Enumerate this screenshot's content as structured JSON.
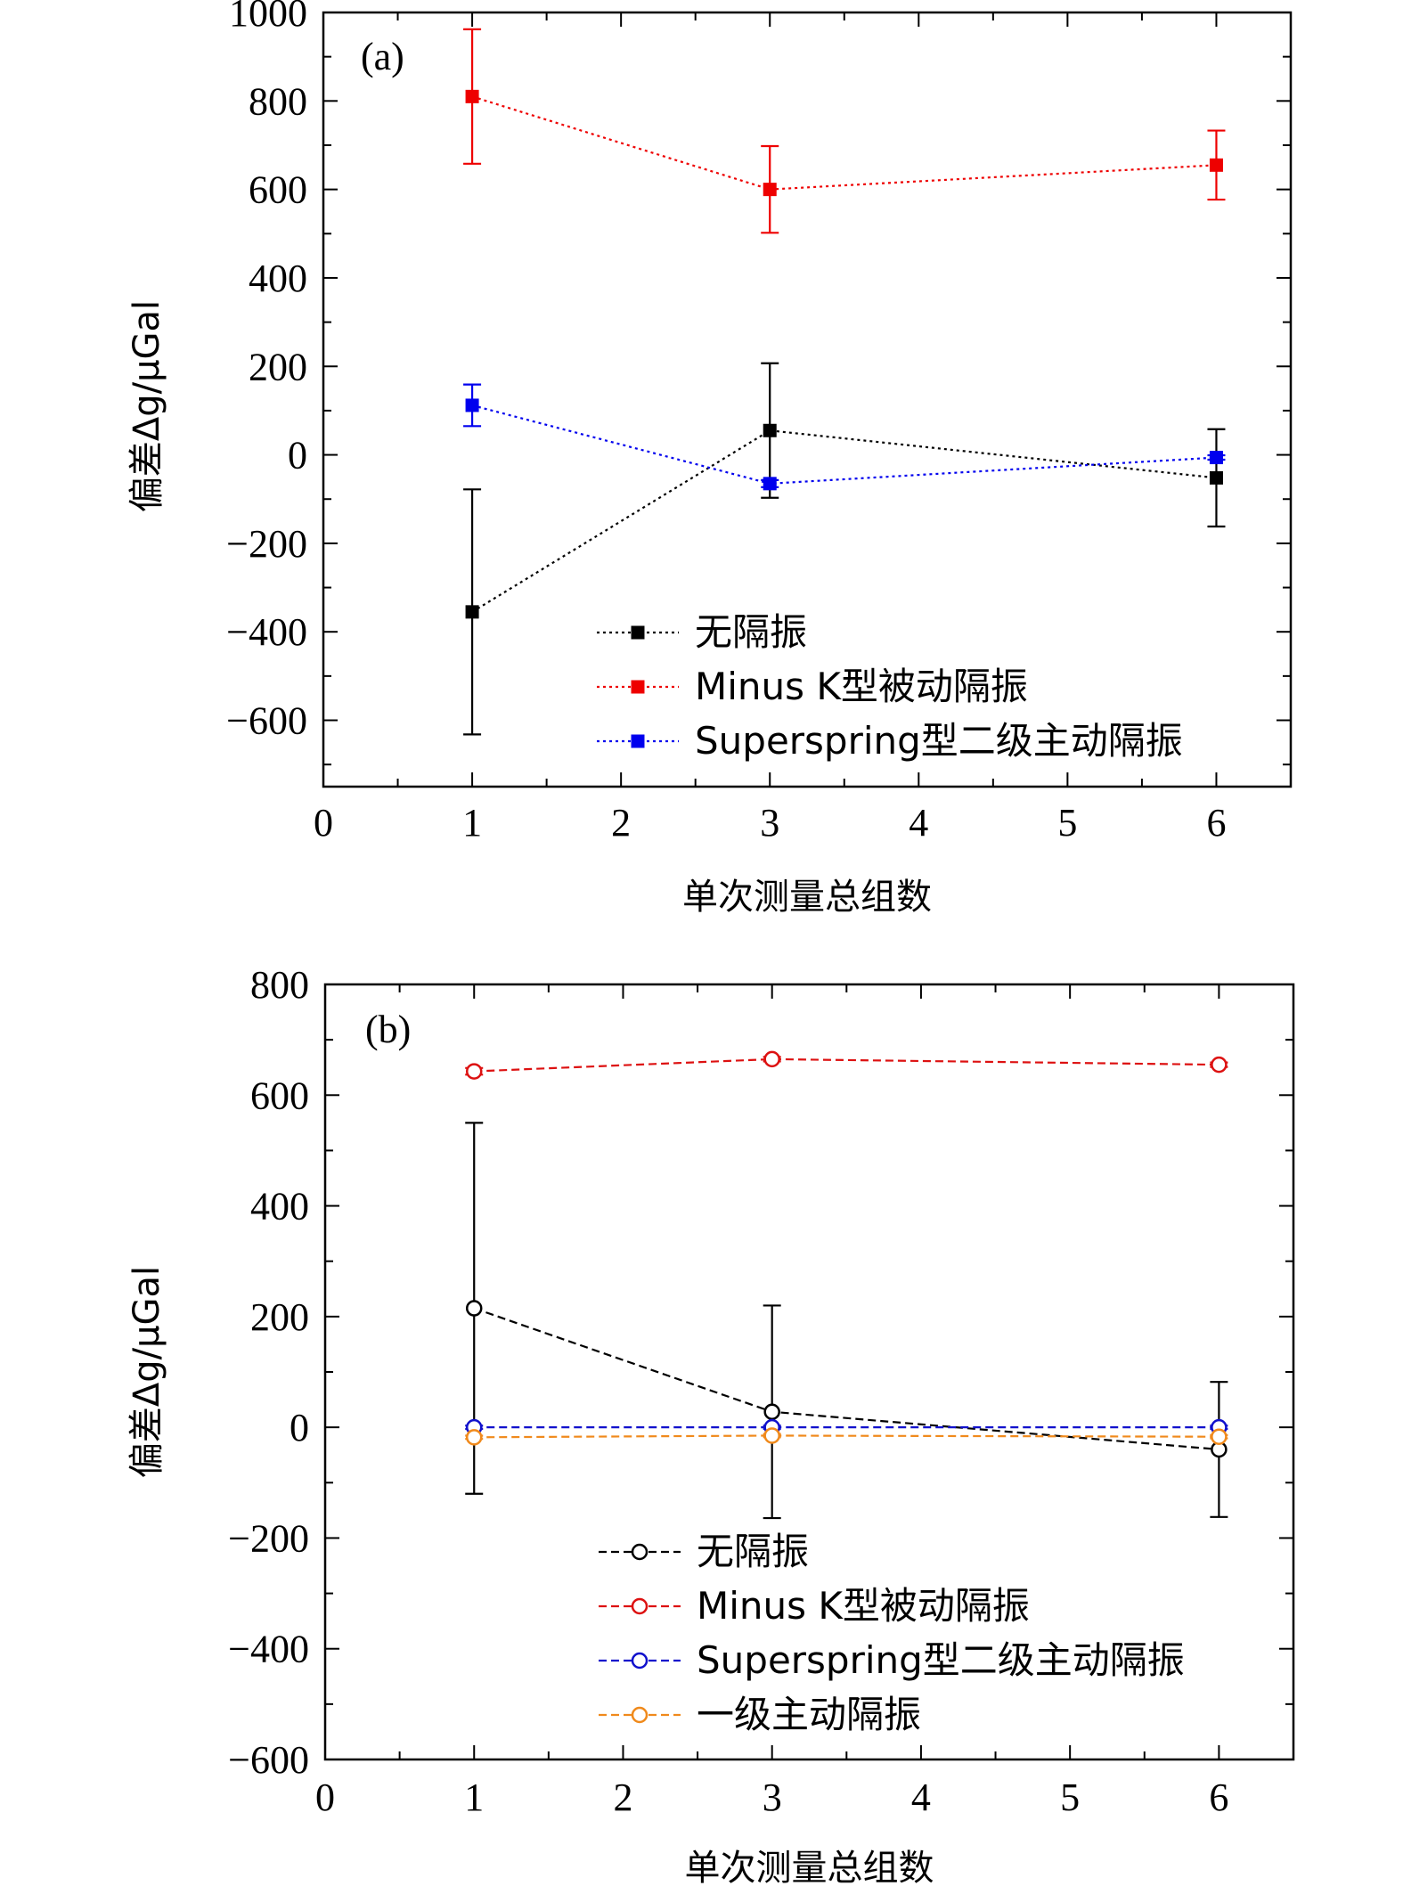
{
  "figure": {
    "categories": [
      "无隔振",
      "Minus K型被动隔振",
      "Superspring型二级主动隔振",
      "一级主动隔振"
    ]
  },
  "chart_data": [
    {
      "type": "scatter",
      "panel_label": "(a)",
      "xlabel": "单次测量总组数",
      "ylabel": "偏差Δg/μGal",
      "xlim": [
        0,
        6.5
      ],
      "ylim": [
        -750,
        1000
      ],
      "xticks": [
        0,
        1,
        2,
        3,
        4,
        5,
        6
      ],
      "yticks": [
        1000,
        800,
        600,
        400,
        200,
        0,
        -200,
        -400,
        -600
      ],
      "ytick_labels": [
        "1000",
        "800",
        "600",
        "400",
        "200",
        "0",
        "−200",
        "−400",
        "−600"
      ],
      "marker": "square-filled",
      "line_style": "dotted",
      "legend_position": "lower-right",
      "series": [
        {
          "name": "无隔振",
          "color": "#000000",
          "x": [
            1,
            3,
            6
          ],
          "y": [
            -355,
            55,
            -52
          ],
          "err": [
            277,
            152,
            110
          ]
        },
        {
          "name": "Minus K型被动隔振",
          "color": "#ee0000",
          "x": [
            1,
            3,
            6
          ],
          "y": [
            810,
            600,
            655
          ],
          "err": [
            152,
            98,
            78
          ]
        },
        {
          "name": "Superspring型二级主动隔振",
          "color": "#0000ee",
          "x": [
            1,
            3,
            6
          ],
          "y": [
            112,
            -65,
            -6
          ],
          "err": [
            47,
            8,
            5
          ]
        }
      ]
    },
    {
      "type": "scatter",
      "panel_label": "(b)",
      "xlabel": "单次测量总组数",
      "ylabel": "偏差Δg/μGal",
      "xlim": [
        0,
        6.5
      ],
      "ylim": [
        -600,
        800
      ],
      "xticks": [
        0,
        1,
        2,
        3,
        4,
        5,
        6
      ],
      "yticks": [
        800,
        600,
        400,
        200,
        0,
        -200,
        -400,
        -600
      ],
      "ytick_labels": [
        "800",
        "600",
        "400",
        "200",
        "0",
        "−200",
        "−400",
        "−600"
      ],
      "marker": "circle-open",
      "line_style": "dashed",
      "legend_position": "lower-right",
      "series": [
        {
          "name": "无隔振",
          "color": "#000000",
          "x": [
            1,
            3,
            6
          ],
          "y": [
            215,
            28,
            -40
          ],
          "err": [
            335,
            192,
            122
          ]
        },
        {
          "name": "Minus K型被动隔振",
          "color": "#dd1111",
          "x": [
            1,
            3,
            6
          ],
          "y": [
            643,
            665,
            655
          ],
          "err": [
            6,
            4,
            4
          ]
        },
        {
          "name": "Superspring型二级主动隔振",
          "color": "#1111cc",
          "x": [
            1,
            3,
            6
          ],
          "y": [
            0,
            0,
            0
          ],
          "err": [
            3,
            3,
            3
          ]
        },
        {
          "name": "一级主动隔振",
          "color": "#f08a1c",
          "x": [
            1,
            3,
            6
          ],
          "y": [
            -18,
            -15,
            -17
          ],
          "err": [
            3,
            3,
            3
          ]
        }
      ]
    }
  ]
}
